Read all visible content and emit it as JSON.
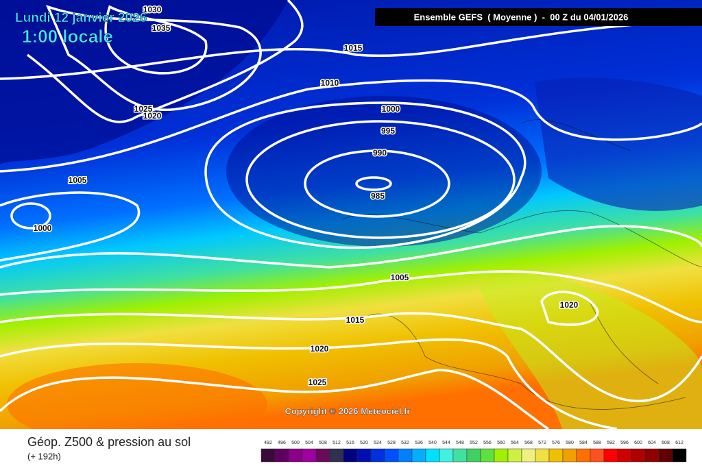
{
  "header": {
    "date": "Lundi 12 janvier 2026",
    "time": "1:00 locale",
    "run": "Ensemble GEFS  ( Moyenne )  -  00 Z du 04/01/2026"
  },
  "map": {
    "isobar_labels": [
      1030,
      1035,
      1015,
      1010,
      1000,
      995,
      990,
      985,
      1025,
      1020,
      1005,
      1000,
      1005,
      1015,
      1020,
      1025,
      1020
    ],
    "copyright": "Copyright © 2026 Meteociel.fr"
  },
  "footer": {
    "title": "Géop. Z500 & pression au sol",
    "lead": "(+ 192h)"
  },
  "legend": {
    "levels": [
      492,
      496,
      500,
      504,
      508,
      512,
      516,
      520,
      524,
      528,
      532,
      536,
      540,
      544,
      548,
      552,
      556,
      560,
      564,
      568,
      572,
      576,
      580,
      584,
      588,
      592,
      596,
      600,
      604,
      608,
      612
    ],
    "colors": [
      "#3a0a3a",
      "#600060",
      "#8a008a",
      "#a000a0",
      "#6a0a5a",
      "#303050",
      "#000080",
      "#0010b0",
      "#0030e0",
      "#0050ff",
      "#0080ff",
      "#00b0ff",
      "#00e0ff",
      "#40f0e0",
      "#40e0a0",
      "#40d060",
      "#60e040",
      "#a0f000",
      "#d0f040",
      "#f0f080",
      "#f0e040",
      "#f0c000",
      "#f0a000",
      "#ff7000",
      "#ff5020",
      "#ff0000",
      "#d00000",
      "#b00000",
      "#900000",
      "#600000",
      "#000000"
    ]
  }
}
